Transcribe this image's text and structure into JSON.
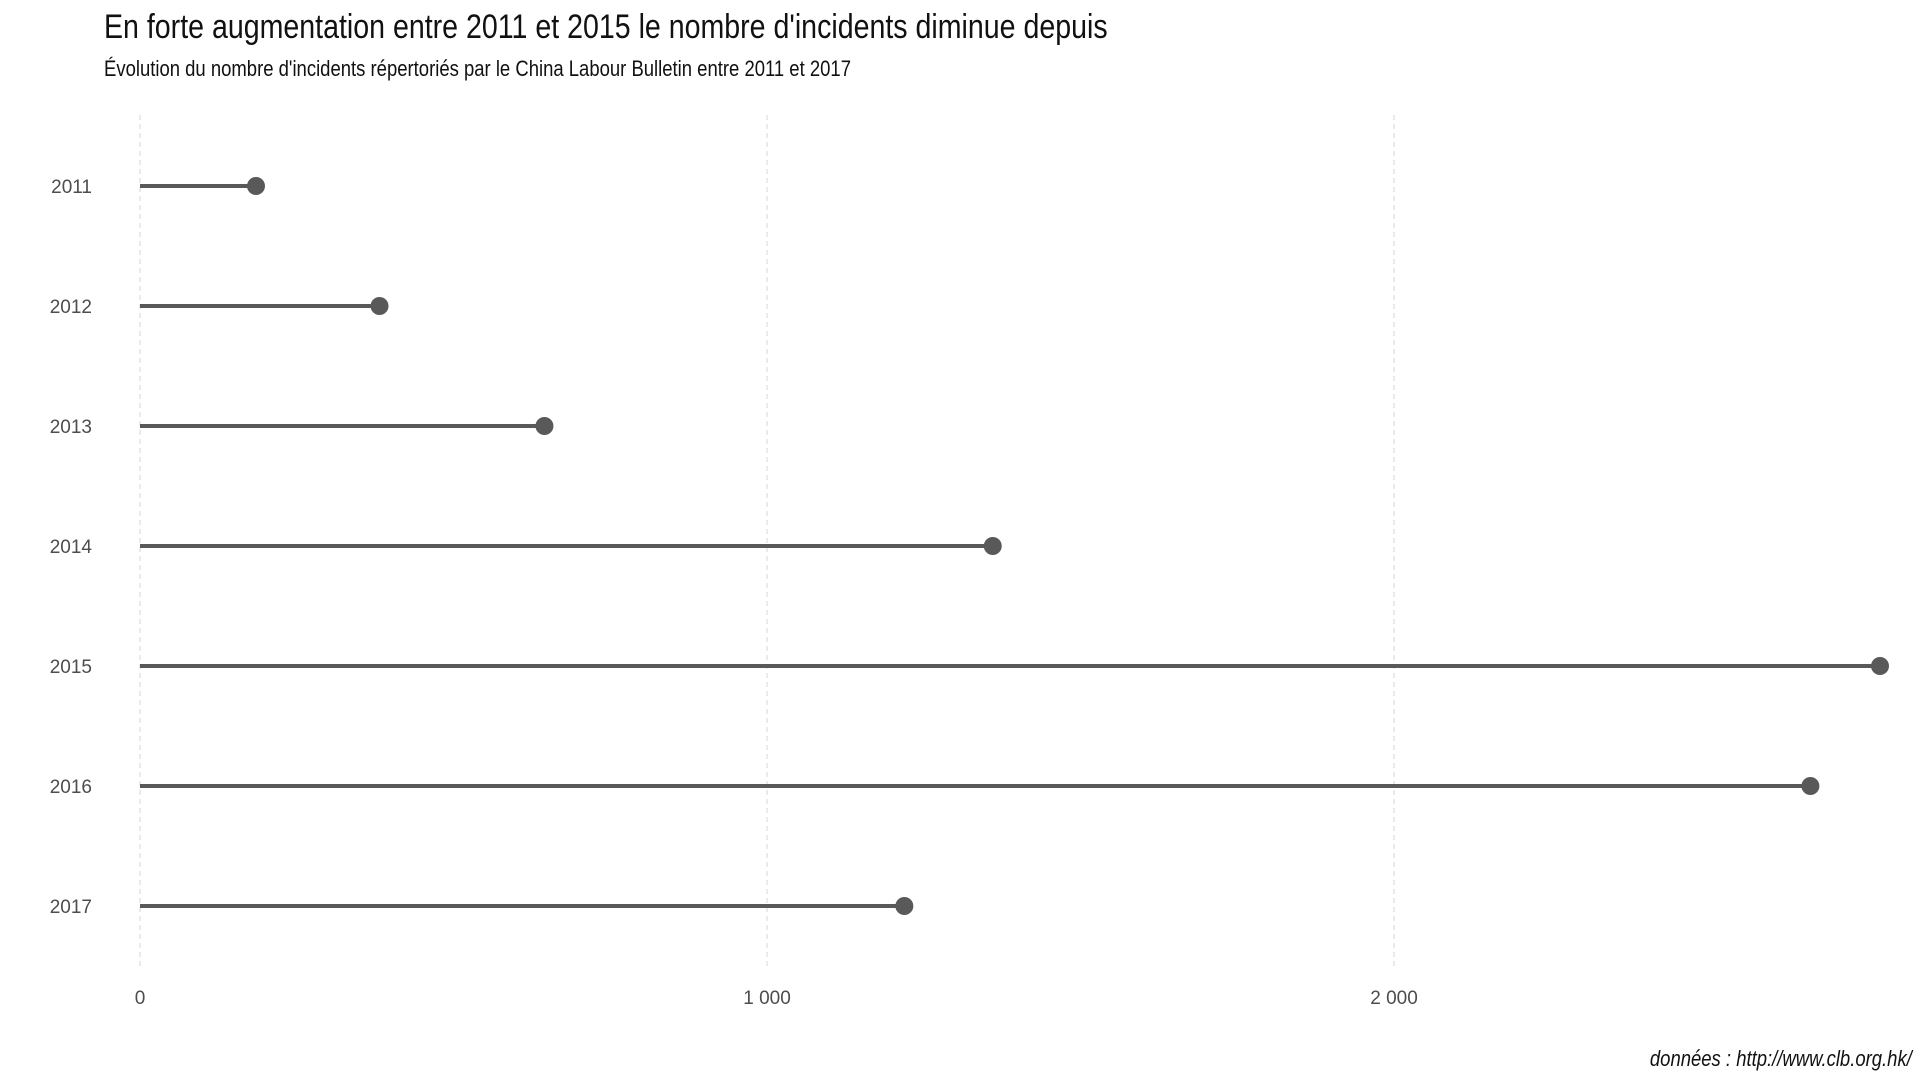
{
  "title": "En forte augmentation entre 2011 et 2015 le nombre d'incidents diminue depuis",
  "subtitle": "Évolution du nombre d'incidents répertoriés par le China Labour Bulletin entre 2011 et 2017",
  "caption": "données : http://www.clb.org.hk/",
  "colors": {
    "series": "#595959",
    "grid": "#dddddd",
    "text": "#4d4d4d"
  },
  "chart_data": {
    "type": "lollipop",
    "orientation": "horizontal",
    "title": "En forte augmentation entre 2011 et 2015 le nombre d'incidents diminue depuis",
    "subtitle": "Évolution du nombre d'incidents répertoriés par le China Labour Bulletin entre 2011 et 2017",
    "categories": [
      "2011",
      "2012",
      "2013",
      "2014",
      "2015",
      "2016",
      "2017"
    ],
    "values": [
      185,
      382,
      645,
      1360,
      2775,
      2664,
      1219
    ],
    "x_ticks": [
      0,
      1000,
      2000
    ],
    "x_tick_labels": [
      "0",
      "1 000",
      "2 000"
    ],
    "xlim": [
      0,
      2775
    ],
    "xlabel": "",
    "ylabel": "",
    "grid": "vertical-dashed",
    "legend": "none"
  }
}
